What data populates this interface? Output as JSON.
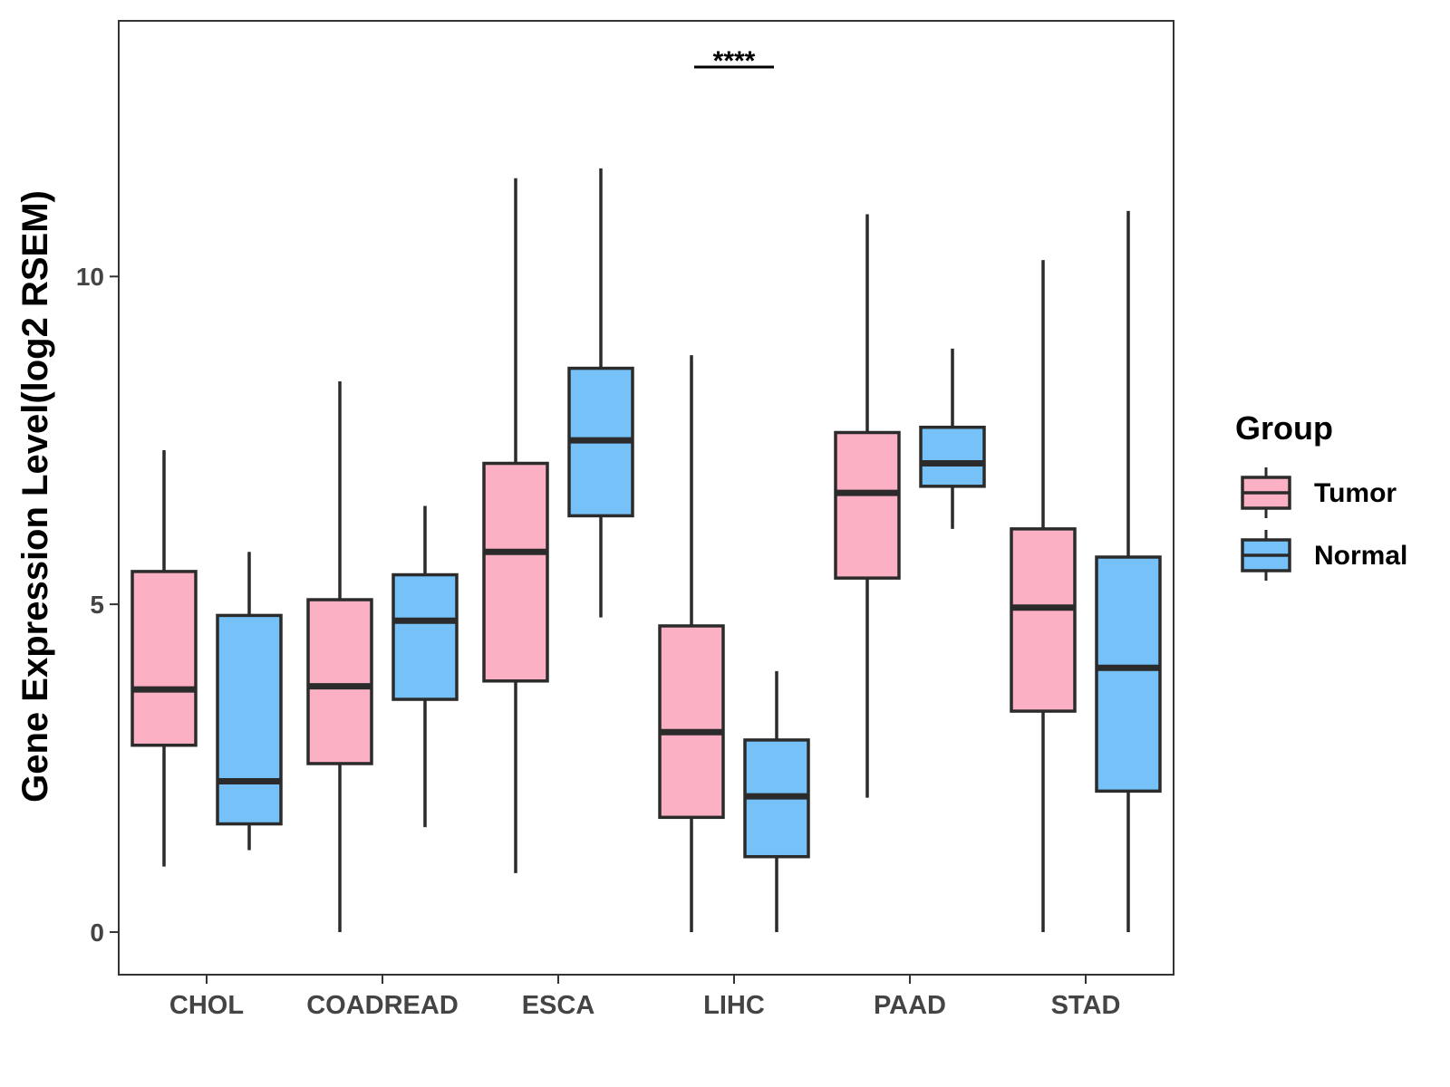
{
  "chart_data": {
    "type": "boxplot",
    "title": "",
    "xlabel": "",
    "ylabel": "Gene Expression Level(log2 RSEM)",
    "ylim": [
      -0.65,
      13.9
    ],
    "yticks": [
      0,
      5,
      10
    ],
    "grid": false,
    "categories": [
      "CHOL",
      "COADREAD",
      "ESCA",
      "LIHC",
      "PAAD",
      "STAD"
    ],
    "legend": {
      "title": "Group",
      "position": "right"
    },
    "series": [
      {
        "name": "Tumor",
        "color": "#FBB1C3",
        "boxes": [
          {
            "category": "CHOL",
            "min": 1.0,
            "q1": 2.85,
            "median": 3.7,
            "q3": 5.5,
            "max": 7.35
          },
          {
            "category": "COADREAD",
            "min": 0.0,
            "q1": 2.57,
            "median": 3.75,
            "q3": 5.07,
            "max": 8.4
          },
          {
            "category": "ESCA",
            "min": 0.9,
            "q1": 3.83,
            "median": 5.8,
            "q3": 7.15,
            "max": 11.5
          },
          {
            "category": "LIHC",
            "min": 0.0,
            "q1": 1.75,
            "median": 3.05,
            "q3": 4.67,
            "max": 8.8
          },
          {
            "category": "PAAD",
            "min": 2.05,
            "q1": 5.4,
            "median": 6.7,
            "q3": 7.62,
            "max": 10.95
          },
          {
            "category": "STAD",
            "min": 0.0,
            "q1": 3.37,
            "median": 4.95,
            "q3": 6.15,
            "max": 10.25
          }
        ]
      },
      {
        "name": "Normal",
        "color": "#75C1F8",
        "boxes": [
          {
            "category": "CHOL",
            "min": 1.25,
            "q1": 1.65,
            "median": 2.3,
            "q3": 4.83,
            "max": 5.8
          },
          {
            "category": "COADREAD",
            "min": 1.6,
            "q1": 3.55,
            "median": 4.75,
            "q3": 5.45,
            "max": 6.5
          },
          {
            "category": "ESCA",
            "min": 4.8,
            "q1": 6.35,
            "median": 7.5,
            "q3": 8.6,
            "max": 11.65
          },
          {
            "category": "LIHC",
            "min": 0.0,
            "q1": 1.15,
            "median": 2.07,
            "q3": 2.93,
            "max": 3.98
          },
          {
            "category": "PAAD",
            "min": 6.15,
            "q1": 6.8,
            "median": 7.15,
            "q3": 7.7,
            "max": 8.9
          },
          {
            "category": "STAD",
            "min": 0.0,
            "q1": 2.15,
            "median": 4.03,
            "q3": 5.72,
            "max": 11.0
          }
        ]
      }
    ],
    "annotations": [
      {
        "text": "****",
        "category": "LIHC",
        "label": "significance"
      }
    ]
  }
}
